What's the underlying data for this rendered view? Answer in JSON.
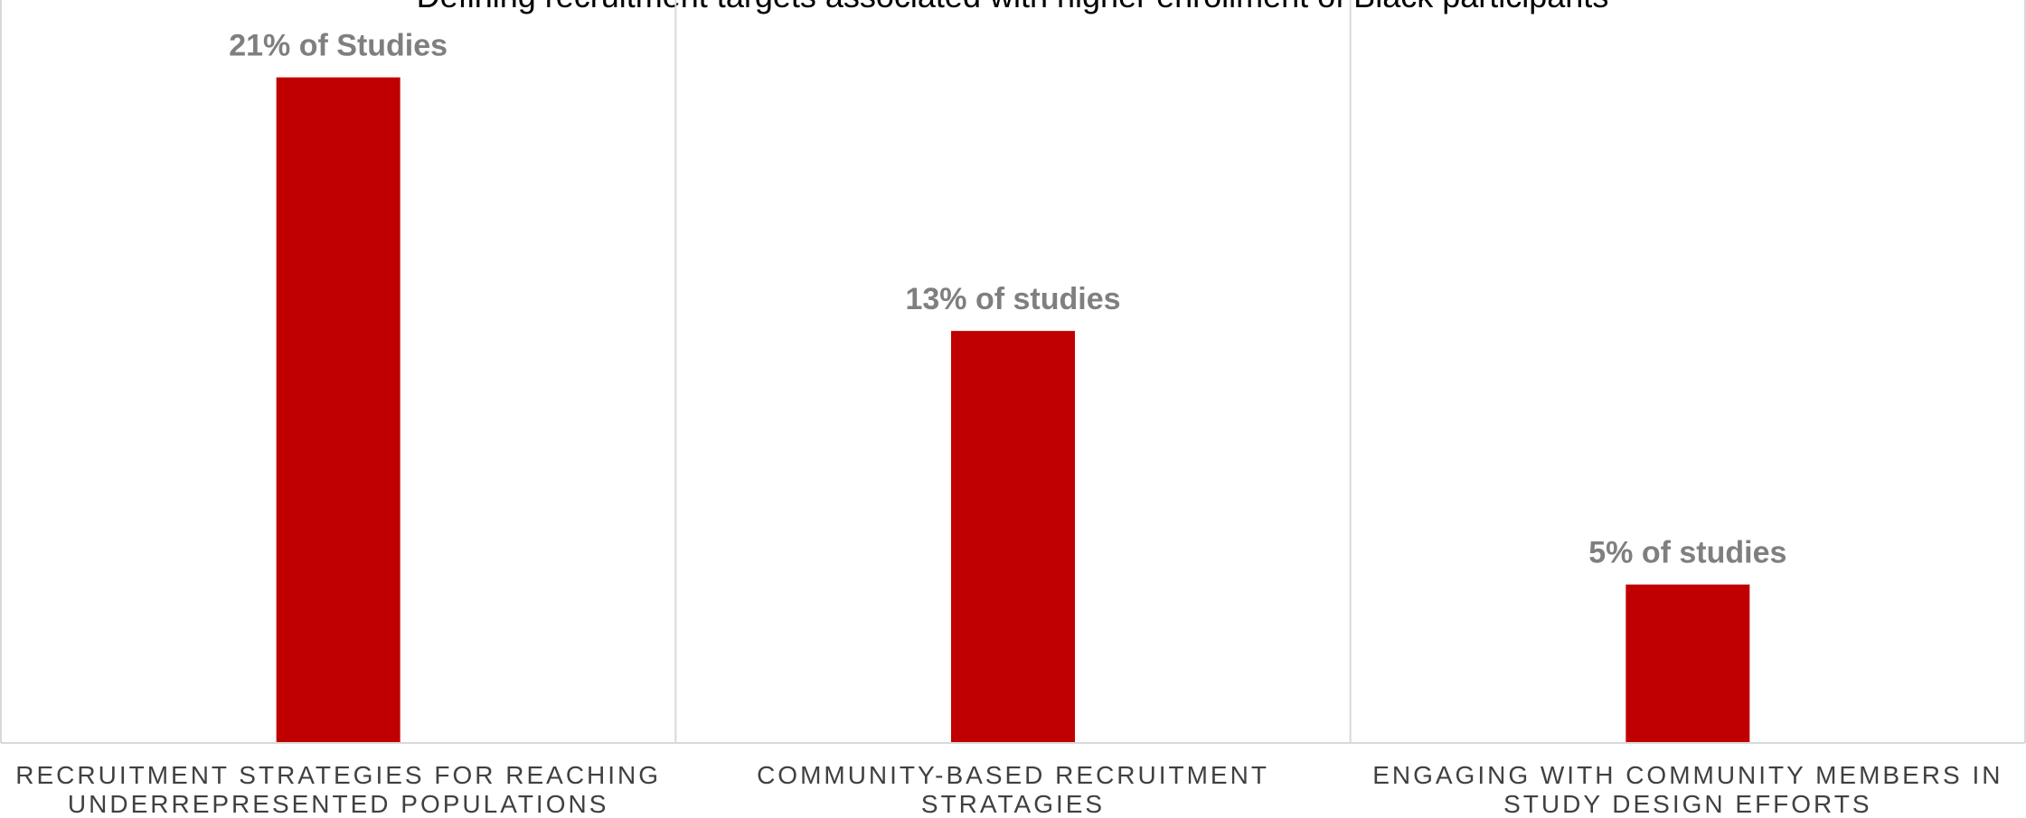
{
  "chart_data": {
    "type": "bar",
    "title": "Defining recruitment targets associated with higher enrollment of Black participants",
    "categories": [
      [
        "RECRUITMENT STRATEGIES FOR REACHING",
        "UNDERREPRESENTED POPULATIONS"
      ],
      [
        "COMMUNITY-BASED RECRUITMENT",
        "STRATAGIES"
      ],
      [
        "ENGAGING WITH COMMUNITY MEMBERS IN",
        "STUDY DESIGN EFFORTS"
      ]
    ],
    "values": [
      21,
      13,
      5
    ],
    "data_labels": [
      "21% of Studies",
      "13% of studies",
      "5% of studies"
    ],
    "ylim": [
      0,
      22.5
    ],
    "bar_color": "#c00000",
    "gridlines": "vertical category separators",
    "legend": "none"
  }
}
